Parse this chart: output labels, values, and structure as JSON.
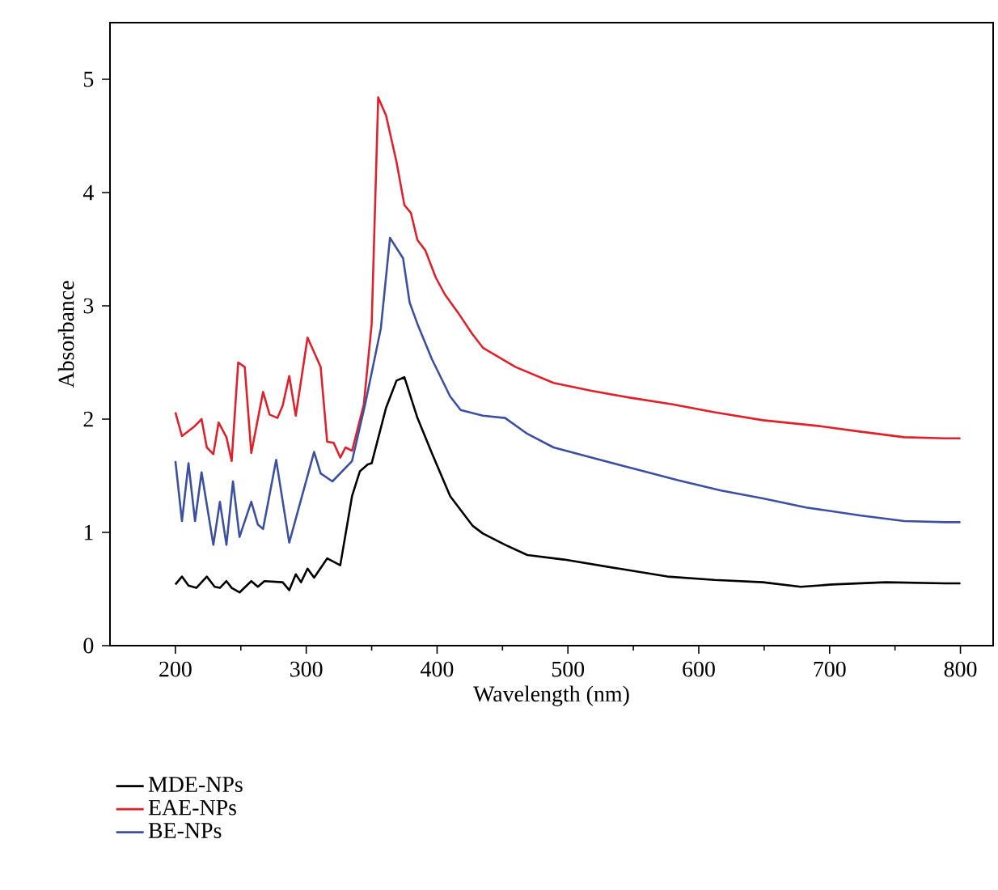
{
  "chart_data": {
    "type": "line",
    "xlabel": "Wavelength (nm)",
    "ylabel": "Absorbance",
    "xlim": [
      150,
      825
    ],
    "ylim": [
      0,
      5.5
    ],
    "xticks": [
      200,
      300,
      400,
      500,
      600,
      700,
      800
    ],
    "yticks": [
      0,
      1,
      2,
      3,
      4,
      5
    ],
    "grid": false,
    "legend": "bottom",
    "marker": "none",
    "line_style": "solid",
    "series": [
      {
        "name": "MDE-NPs",
        "color": "#000000",
        "x": [
          200,
          205,
          210,
          216,
          224,
          230,
          234,
          239,
          243,
          249,
          258,
          263,
          268,
          282,
          287,
          292,
          296,
          301,
          306,
          316,
          326,
          335,
          341,
          347,
          350,
          361,
          369,
          375,
          385,
          396,
          410,
          427,
          435,
          452,
          469,
          497,
          539,
          576,
          612,
          649,
          678,
          702,
          743,
          788,
          800
        ],
        "values": [
          0.54,
          0.61,
          0.53,
          0.51,
          0.61,
          0.52,
          0.51,
          0.57,
          0.51,
          0.47,
          0.57,
          0.52,
          0.57,
          0.56,
          0.49,
          0.63,
          0.56,
          0.68,
          0.6,
          0.77,
          0.71,
          1.32,
          1.54,
          1.6,
          1.61,
          2.1,
          2.34,
          2.37,
          2.01,
          1.7,
          1.32,
          1.06,
          0.99,
          0.89,
          0.8,
          0.76,
          0.68,
          0.61,
          0.58,
          0.56,
          0.52,
          0.54,
          0.56,
          0.55,
          0.55
        ]
      },
      {
        "name": "EAE-NPs",
        "color": "#e0202a",
        "x": [
          200,
          205,
          214,
          220,
          224,
          229,
          233,
          239,
          243,
          248,
          253,
          258,
          267,
          272,
          278,
          282,
          287,
          292,
          301,
          311,
          316,
          321,
          326,
          330,
          335,
          344,
          350,
          355,
          361,
          369,
          375,
          380,
          385,
          391,
          399,
          406,
          416,
          427,
          435,
          460,
          489,
          518,
          547,
          580,
          612,
          649,
          691,
          723,
          757,
          788,
          800
        ],
        "values": [
          2.06,
          1.85,
          1.93,
          2.0,
          1.75,
          1.69,
          1.97,
          1.84,
          1.63,
          2.5,
          2.46,
          1.7,
          2.24,
          2.04,
          2.01,
          2.12,
          2.38,
          2.03,
          2.72,
          2.46,
          1.8,
          1.79,
          1.66,
          1.75,
          1.72,
          2.13,
          2.84,
          4.84,
          4.68,
          4.27,
          3.89,
          3.82,
          3.58,
          3.49,
          3.25,
          3.1,
          2.94,
          2.75,
          2.63,
          2.46,
          2.32,
          2.25,
          2.19,
          2.13,
          2.06,
          1.99,
          1.94,
          1.89,
          1.84,
          1.83,
          1.83
        ]
      },
      {
        "name": "BE-NPs",
        "color": "#3c4fa0",
        "x": [
          200,
          205,
          210,
          215,
          220,
          229,
          234,
          239,
          244,
          249,
          258,
          263,
          267,
          277,
          287,
          306,
          311,
          320,
          335,
          345,
          357,
          364,
          374,
          379,
          385,
          396,
          410,
          418,
          435,
          452,
          469,
          489,
          518,
          551,
          584,
          617,
          649,
          682,
          723,
          757,
          788,
          800
        ],
        "values": [
          1.63,
          1.1,
          1.61,
          1.1,
          1.53,
          0.89,
          1.27,
          0.89,
          1.45,
          0.96,
          1.27,
          1.07,
          1.03,
          1.64,
          0.91,
          1.71,
          1.52,
          1.45,
          1.63,
          2.13,
          2.8,
          3.6,
          3.42,
          3.03,
          2.84,
          2.53,
          2.2,
          2.08,
          2.03,
          2.01,
          1.87,
          1.75,
          1.66,
          1.56,
          1.46,
          1.37,
          1.3,
          1.22,
          1.15,
          1.1,
          1.09,
          1.09
        ]
      }
    ]
  }
}
